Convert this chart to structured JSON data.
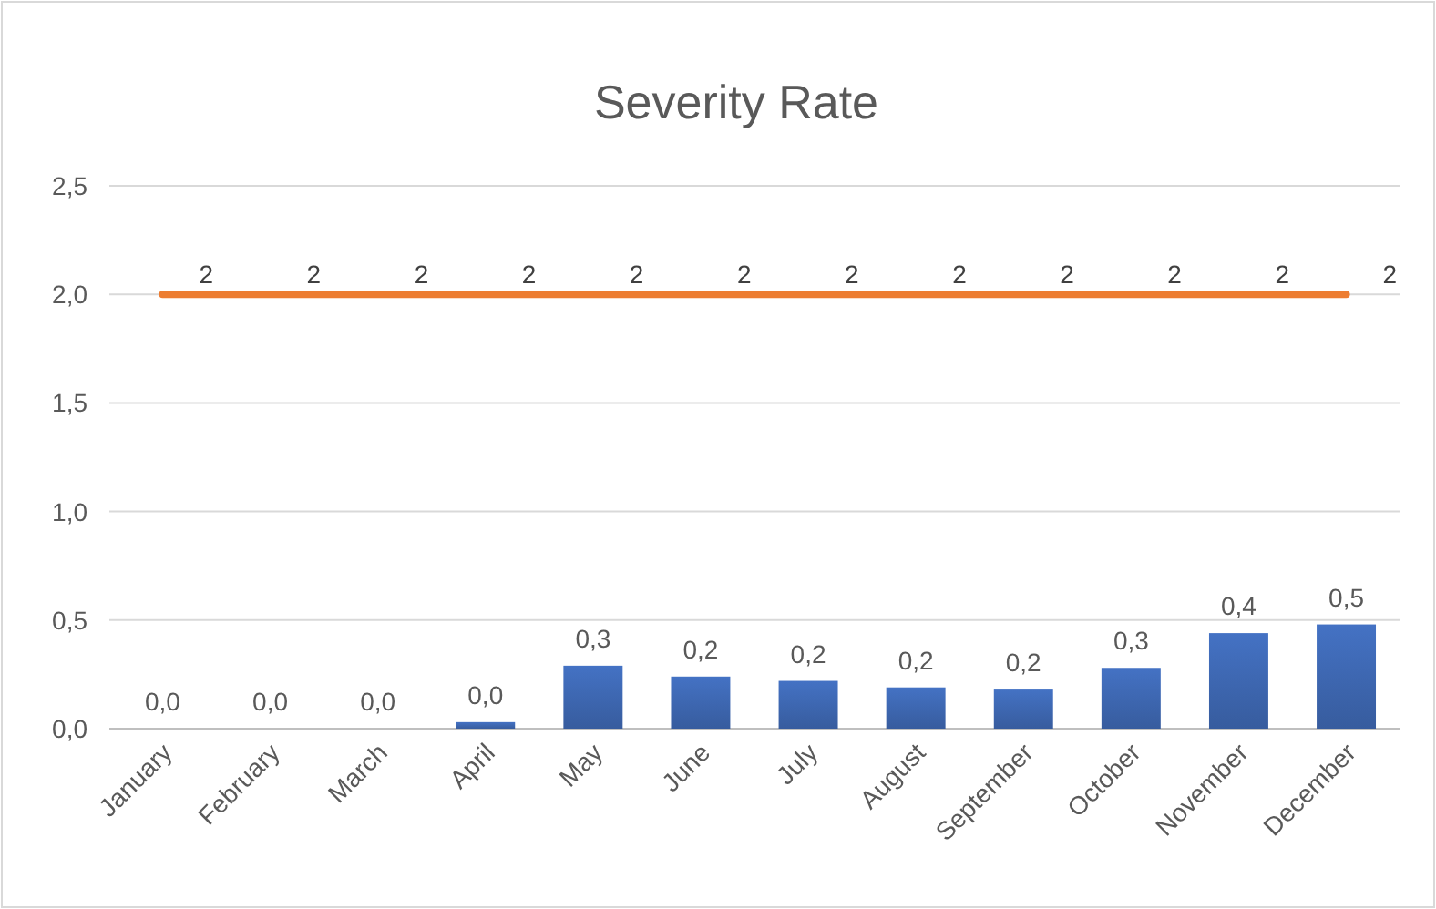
{
  "chart_data": {
    "type": "bar",
    "title": "Severity Rate",
    "categories": [
      "January",
      "February",
      "March",
      "April",
      "May",
      "June",
      "July",
      "August",
      "September",
      "October",
      "November",
      "December"
    ],
    "series": [
      {
        "color": "#4472c4",
        "values": [
          0,
          0,
          0,
          0.03,
          0.29,
          0.24,
          0.22,
          0.19,
          0.18,
          0.28,
          0.44,
          0.48
        ],
        "value_labels": [
          "0,0",
          "0,0",
          "0,0",
          "0,0",
          "0,3",
          "0,2",
          "0,2",
          "0,2",
          "0,2",
          "0,3",
          "0,4",
          "0,5"
        ]
      },
      {
        "type": "line",
        "color": "#ed7d31",
        "values": [
          2,
          2,
          2,
          2,
          2,
          2,
          2,
          2,
          2,
          2,
          2,
          2
        ],
        "value_labels": [
          "2",
          "2",
          "2",
          "2",
          "2",
          "2",
          "2",
          "2",
          "2",
          "2",
          "2",
          "2"
        ]
      }
    ],
    "ylim": [
      0,
      2.5
    ],
    "yticks": [
      {
        "value": 0,
        "label": "0,0"
      },
      {
        "value": 0.5,
        "label": "0,5"
      },
      {
        "value": 1,
        "label": "1,0"
      },
      {
        "value": 1.5,
        "label": "1,5"
      },
      {
        "value": 2,
        "label": "2,0"
      },
      {
        "value": 2.5,
        "label": "2,5"
      }
    ],
    "grid": "y"
  }
}
